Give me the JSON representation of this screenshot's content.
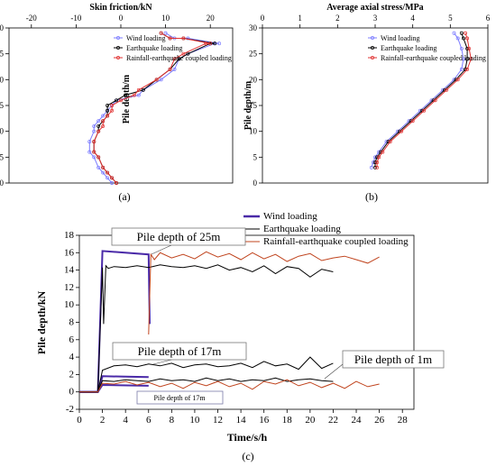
{
  "panels": {
    "a": {
      "label": "(a)"
    },
    "b": {
      "label": "(b)"
    },
    "c": {
      "label": "(c)"
    }
  },
  "chart_data": [
    {
      "panel": "a",
      "type": "line",
      "xlabel": "Skin friction/kN",
      "ylabel": "Pile depth/m",
      "xlim": [
        -25,
        25
      ],
      "ylim": [
        30,
        0
      ],
      "xticks": [
        -20,
        -10,
        0,
        10,
        20
      ],
      "yticks": [
        0,
        5,
        10,
        15,
        20,
        25,
        30
      ],
      "legend_position": "top-right",
      "colors": {
        "Wind loading": "#7b7bff",
        "Earthquake loading": "#000000",
        "Rainfall-earthquake coupled loading": "#e03030"
      },
      "series": [
        {
          "name": "Wind loading",
          "x": [
            -2,
            -3,
            -4,
            -5,
            -6,
            -7,
            -7,
            -6,
            -6,
            -5,
            -4,
            -3,
            -2,
            -1,
            4,
            5,
            9,
            12,
            13,
            15,
            21,
            22,
            15,
            12,
            10
          ],
          "y": [
            0,
            1,
            2,
            3,
            5,
            6,
            8,
            10,
            11,
            12,
            13,
            14,
            15,
            16,
            17,
            18,
            20,
            22,
            24,
            25,
            27,
            27,
            28,
            28,
            29
          ]
        },
        {
          "name": "Earthquake loading",
          "x": [
            -1,
            -2,
            -3,
            -4,
            -5,
            -6,
            -6,
            -5,
            -5,
            -4,
            -3,
            -3,
            -3,
            -1,
            1,
            5,
            8,
            11,
            13,
            15,
            20,
            21,
            14,
            11,
            9
          ],
          "y": [
            0,
            1,
            2,
            3,
            5,
            6,
            8,
            10,
            11,
            12,
            13,
            14,
            15,
            16,
            17,
            18,
            20,
            22,
            24,
            25,
            27,
            27,
            28,
            28,
            29
          ]
        },
        {
          "name": "Rainfall-earthquake coupled loading",
          "x": [
            -1,
            -2,
            -3,
            -4,
            -5,
            -6,
            -6,
            -5,
            -4,
            -4,
            -3,
            -2,
            -2,
            0,
            3,
            4,
            8,
            11,
            12,
            14,
            19,
            20,
            14,
            11,
            9
          ],
          "y": [
            0,
            1,
            2,
            3,
            5,
            6,
            8,
            10,
            11,
            12,
            13,
            14,
            15,
            16,
            17,
            18,
            20,
            22,
            24,
            25,
            27,
            27,
            28,
            28,
            29
          ]
        }
      ]
    },
    {
      "panel": "b",
      "type": "line",
      "xlabel": "Average axial stress/MPa",
      "ylabel": "Pile depth/m",
      "xlim": [
        0,
        6
      ],
      "ylim": [
        30,
        0
      ],
      "xticks": [
        0,
        1,
        2,
        3,
        4,
        5,
        6
      ],
      "yticks": [
        0,
        5,
        10,
        15,
        20,
        25,
        30
      ],
      "legend_position": "top-right",
      "colors": {
        "Wind loading": "#7b7bff",
        "Earthquake loading": "#000000",
        "Rainfall-earthquake coupled loading": "#e03030"
      },
      "series": [
        {
          "name": "Wind loading",
          "x": [
            2.9,
            2.95,
            3.0,
            3.1,
            3.3,
            3.6,
            3.9,
            4.2,
            4.5,
            4.8,
            5.1,
            5.3,
            5.35,
            5.3,
            5.2,
            5.1
          ],
          "y": [
            3,
            4,
            5,
            6,
            8,
            10,
            12,
            14,
            16,
            18,
            20,
            22,
            24,
            26,
            28,
            29
          ]
        },
        {
          "name": "Earthquake loading",
          "x": [
            3.0,
            3.0,
            3.05,
            3.15,
            3.35,
            3.65,
            3.95,
            4.25,
            4.55,
            4.85,
            5.15,
            5.4,
            5.45,
            5.45,
            5.35,
            5.3
          ],
          "y": [
            3,
            4,
            5,
            6,
            8,
            10,
            12,
            14,
            16,
            18,
            20,
            22,
            24,
            26,
            28,
            29
          ]
        },
        {
          "name": "Rainfall-earthquake coupled loading",
          "x": [
            3.05,
            3.05,
            3.1,
            3.2,
            3.4,
            3.7,
            4.0,
            4.3,
            4.6,
            4.9,
            5.2,
            5.45,
            5.55,
            5.5,
            5.45,
            5.4
          ],
          "y": [
            3,
            4,
            5,
            6,
            8,
            10,
            12,
            14,
            16,
            18,
            20,
            22,
            24,
            26,
            28,
            29
          ]
        }
      ]
    },
    {
      "panel": "c",
      "type": "line",
      "xlabel": "Time/s/h",
      "ylabel": "Pile depth/kN",
      "xlim": [
        0,
        29
      ],
      "ylim": [
        -2,
        18
      ],
      "xticks": [
        0,
        2,
        4,
        6,
        8,
        10,
        12,
        14,
        16,
        18,
        20,
        22,
        24,
        26,
        28
      ],
      "yticks": [
        -2,
        0,
        2,
        4,
        6,
        8,
        10,
        12,
        14,
        16,
        18
      ],
      "legend_position": "top-right",
      "colors": {
        "Wind loading": "#4a2aa8",
        "Earthquake loading": "#000000",
        "Rainfall-earthquake coupled loading": "#c0441e"
      },
      "annotations": [
        "Pile depth of 25m",
        "Pile depth of 17m",
        "Pile depth of 1m",
        "Pile depth of 17m"
      ],
      "series": [
        {
          "name": "Wind loading",
          "group": "25m",
          "x": [
            0,
            1.6,
            2,
            6,
            6.1
          ],
          "y": [
            0,
            0,
            16.2,
            15.8,
            7.8
          ]
        },
        {
          "name": "Wind loading",
          "group": "17m",
          "x": [
            0,
            1.6,
            2,
            6
          ],
          "y": [
            0,
            0,
            1.8,
            1.7
          ]
        },
        {
          "name": "Wind loading",
          "group": "1m",
          "x": [
            0,
            1.6,
            2,
            6
          ],
          "y": [
            0,
            0,
            0.8,
            0.7
          ]
        },
        {
          "name": "Earthquake loading",
          "group": "25m",
          "x": [
            0,
            1.6,
            2,
            2.1,
            2.3,
            2.5,
            3,
            4,
            5,
            6,
            7,
            8,
            9,
            10,
            11,
            12,
            13,
            14,
            15,
            16,
            17,
            18,
            19,
            20,
            21,
            22
          ],
          "y": [
            0,
            0,
            14.3,
            7.8,
            14.5,
            14.2,
            14.4,
            14.3,
            14.5,
            14.3,
            14.6,
            14.4,
            14.3,
            14.5,
            14.2,
            14.6,
            14.0,
            14.3,
            13.8,
            14.5,
            13.6,
            14.4,
            14.2,
            13.2,
            14.1,
            13.8
          ]
        },
        {
          "name": "Earthquake loading",
          "group": "17m",
          "x": [
            0,
            1.6,
            2,
            3,
            4,
            5,
            6,
            7,
            8,
            9,
            10,
            11,
            12,
            13,
            14,
            15,
            16,
            17,
            18,
            19,
            20,
            21,
            22
          ],
          "y": [
            0,
            0,
            2.5,
            3.0,
            3.1,
            2.9,
            3.2,
            3.0,
            3.3,
            2.8,
            3.1,
            3.2,
            2.9,
            3.0,
            3.3,
            2.8,
            3.5,
            3.0,
            3.2,
            2.6,
            4.0,
            2.7,
            3.3
          ]
        },
        {
          "name": "Earthquake loading",
          "group": "1m",
          "x": [
            0,
            1.6,
            2,
            3,
            4,
            5,
            6,
            7,
            8,
            9,
            10,
            11,
            12,
            13,
            14,
            15,
            16,
            17,
            18,
            19,
            20,
            21,
            22
          ],
          "y": [
            0,
            0,
            1.3,
            1.2,
            1.4,
            1.3,
            1.2,
            1.5,
            1.3,
            1.4,
            1.2,
            1.6,
            1.3,
            1.5,
            1.2,
            1.4,
            1.3,
            1.6,
            1.2,
            1.4,
            1.5,
            1.3,
            1.2
          ]
        },
        {
          "name": "Rainfall-earthquake coupled loading",
          "group": "25m",
          "x": [
            6,
            6.2,
            6.5,
            7,
            8,
            9,
            10,
            11,
            12,
            13,
            14,
            15,
            16,
            17,
            18,
            19,
            20,
            21,
            22,
            23,
            24,
            25,
            26
          ],
          "y": [
            6.6,
            15.8,
            15.2,
            16.0,
            15.4,
            15.8,
            15.3,
            16.1,
            15.5,
            15.9,
            15.2,
            16.0,
            15.3,
            15.8,
            15.0,
            15.6,
            15.9,
            15.1,
            15.4,
            15.6,
            15.2,
            14.8,
            15.5
          ]
        },
        {
          "name": "Rainfall-earthquake coupled loading",
          "group": "1m",
          "x": [
            0,
            1.6,
            2,
            3,
            4,
            5,
            6,
            7,
            8,
            9,
            10,
            11,
            12,
            13,
            14,
            15,
            16,
            17,
            18,
            19,
            20,
            21,
            22,
            23,
            24,
            25,
            26
          ],
          "y": [
            0,
            0,
            1.0,
            0.9,
            1.2,
            0.8,
            1.1,
            0.6,
            1.0,
            0.4,
            1.1,
            0.7,
            1.2,
            0.6,
            1.0,
            0.3,
            1.2,
            0.9,
            1.4,
            0.7,
            1.1,
            0.5,
            1.0,
            0.4,
            1.2,
            0.6,
            0.9
          ]
        }
      ]
    }
  ]
}
